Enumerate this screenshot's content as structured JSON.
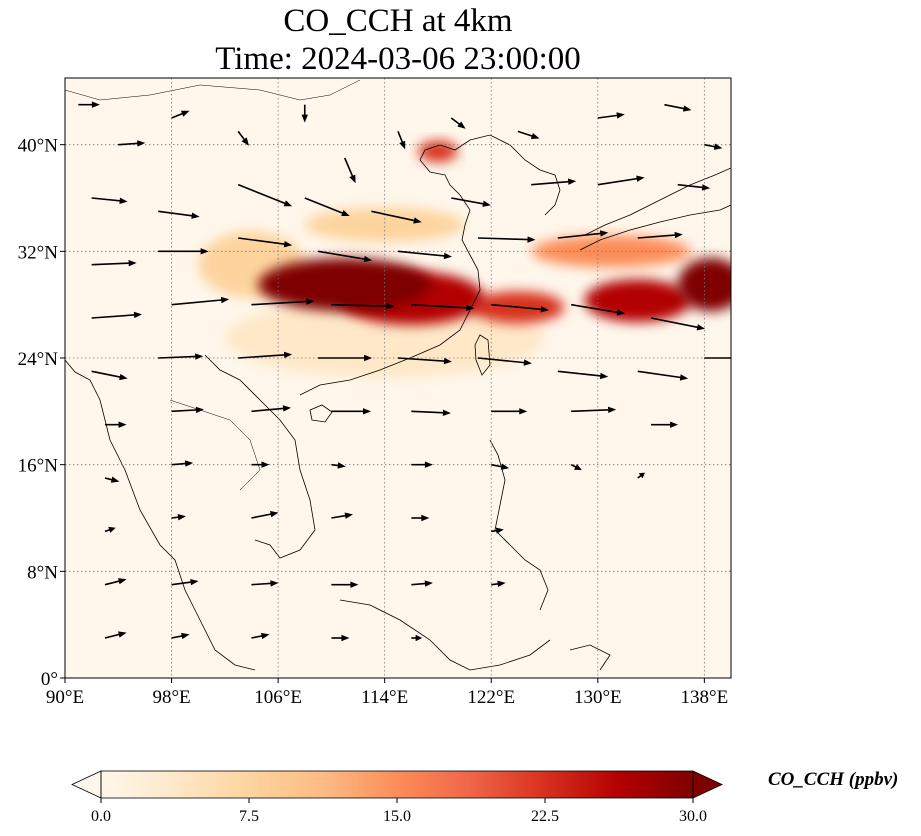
{
  "title": {
    "line1": "CO_CCH at 4km",
    "line2": "Time: 2024-03-06 23:00:00"
  },
  "map": {
    "extent": {
      "lon": [
        90,
        140
      ],
      "lat": [
        0,
        45
      ]
    },
    "lat_ticks": [
      {
        "value": 0,
        "label": "0°"
      },
      {
        "value": 8,
        "label": "8°N"
      },
      {
        "value": 16,
        "label": "16°N"
      },
      {
        "value": 24,
        "label": "24°N"
      },
      {
        "value": 32,
        "label": "32°N"
      },
      {
        "value": 40,
        "label": "40°N"
      }
    ],
    "lon_ticks": [
      {
        "value": 90,
        "label": "90°E"
      },
      {
        "value": 98,
        "label": "98°E"
      },
      {
        "value": 106,
        "label": "106°E"
      },
      {
        "value": 114,
        "label": "114°E"
      },
      {
        "value": 122,
        "label": "122°E"
      },
      {
        "value": 130,
        "label": "130°E"
      },
      {
        "value": 138,
        "label": "138°E"
      }
    ],
    "gridlines": true,
    "field_plumes": [
      {
        "name": "main-plume",
        "lon": 111,
        "lat": 29.5,
        "rx": 6.5,
        "ry": 2.0,
        "value": 30
      },
      {
        "name": "central-plume",
        "lon": 116,
        "lat": 28.5,
        "rx": 5.5,
        "ry": 2.0,
        "value": 28
      },
      {
        "name": "east-china-sea-plume",
        "lon": 124,
        "lat": 27.8,
        "rx": 3.5,
        "ry": 1.2,
        "value": 22
      },
      {
        "name": "pacific-plume",
        "lon": 133,
        "lat": 28.3,
        "rx": 4.0,
        "ry": 1.6,
        "value": 26
      },
      {
        "name": "far-east-plume",
        "lon": 138.5,
        "lat": 29.5,
        "rx": 2.5,
        "ry": 2.0,
        "value": 29
      },
      {
        "name": "japan-band",
        "lon": 131,
        "lat": 32.0,
        "rx": 6.0,
        "ry": 1.2,
        "value": 14
      },
      {
        "name": "north-band",
        "lon": 114,
        "lat": 34.0,
        "rx": 6.0,
        "ry": 1.3,
        "value": 9
      },
      {
        "name": "bohai-plume",
        "lon": 118,
        "lat": 39.5,
        "rx": 1.5,
        "ry": 0.8,
        "value": 24
      },
      {
        "name": "south-haze",
        "lon": 114,
        "lat": 25.5,
        "rx": 12.0,
        "ry": 3.0,
        "value": 5
      },
      {
        "name": "west-haze",
        "lon": 104,
        "lat": 31.0,
        "rx": 4.0,
        "ry": 2.5,
        "value": 8
      }
    ],
    "wind_vectors": [
      {
        "lon": 91,
        "lat": 43,
        "u": 1.2,
        "v": 0.0
      },
      {
        "lon": 94,
        "lat": 40,
        "u": 1.5,
        "v": 0.1
      },
      {
        "lon": 98,
        "lat": 42,
        "u": 1.0,
        "v": 0.4
      },
      {
        "lon": 103,
        "lat": 41,
        "u": 0.6,
        "v": -0.8
      },
      {
        "lon": 108,
        "lat": 43,
        "u": 0.0,
        "v": -1.0
      },
      {
        "lon": 111,
        "lat": 39,
        "u": 0.6,
        "v": -1.4
      },
      {
        "lon": 115,
        "lat": 41,
        "u": 0.4,
        "v": -1.0
      },
      {
        "lon": 119,
        "lat": 42,
        "u": 0.8,
        "v": -0.6
      },
      {
        "lon": 124,
        "lat": 41,
        "u": 1.2,
        "v": -0.4
      },
      {
        "lon": 130,
        "lat": 42,
        "u": 1.5,
        "v": 0.2
      },
      {
        "lon": 135,
        "lat": 43,
        "u": 1.5,
        "v": -0.3
      },
      {
        "lon": 138,
        "lat": 40,
        "u": 1.0,
        "v": -0.2
      },
      {
        "lon": 92,
        "lat": 36,
        "u": 2.0,
        "v": -0.2
      },
      {
        "lon": 97,
        "lat": 35,
        "u": 2.3,
        "v": -0.3
      },
      {
        "lon": 103,
        "lat": 37,
        "u": 3.0,
        "v": -1.2
      },
      {
        "lon": 108,
        "lat": 36,
        "u": 2.5,
        "v": -1.0
      },
      {
        "lon": 113,
        "lat": 35,
        "u": 2.8,
        "v": -0.6
      },
      {
        "lon": 119,
        "lat": 36,
        "u": 2.2,
        "v": -0.4
      },
      {
        "lon": 125,
        "lat": 37,
        "u": 2.5,
        "v": 0.2
      },
      {
        "lon": 130,
        "lat": 37,
        "u": 2.6,
        "v": 0.4
      },
      {
        "lon": 136,
        "lat": 37,
        "u": 1.8,
        "v": -0.2
      },
      {
        "lon": 92,
        "lat": 31,
        "u": 2.5,
        "v": 0.1
      },
      {
        "lon": 97,
        "lat": 32,
        "u": 2.8,
        "v": 0.0
      },
      {
        "lon": 103,
        "lat": 33,
        "u": 3.0,
        "v": -0.4
      },
      {
        "lon": 109,
        "lat": 32,
        "u": 3.0,
        "v": -0.5
      },
      {
        "lon": 115,
        "lat": 32,
        "u": 3.0,
        "v": -0.3
      },
      {
        "lon": 121,
        "lat": 33,
        "u": 3.2,
        "v": -0.1
      },
      {
        "lon": 127,
        "lat": 33,
        "u": 2.8,
        "v": 0.3
      },
      {
        "lon": 133,
        "lat": 33,
        "u": 2.5,
        "v": 0.2
      },
      {
        "lon": 92,
        "lat": 27,
        "u": 2.8,
        "v": 0.2
      },
      {
        "lon": 98,
        "lat": 28,
        "u": 3.2,
        "v": 0.3
      },
      {
        "lon": 104,
        "lat": 28,
        "u": 3.5,
        "v": 0.2
      },
      {
        "lon": 110,
        "lat": 28,
        "u": 3.5,
        "v": -0.1
      },
      {
        "lon": 116,
        "lat": 28,
        "u": 3.5,
        "v": -0.2
      },
      {
        "lon": 122,
        "lat": 28,
        "u": 3.2,
        "v": -0.3
      },
      {
        "lon": 128,
        "lat": 28,
        "u": 3.0,
        "v": -0.5
      },
      {
        "lon": 134,
        "lat": 27,
        "u": 3.0,
        "v": -0.6
      },
      {
        "lon": 92,
        "lat": 23,
        "u": 2.0,
        "v": -0.4
      },
      {
        "lon": 97,
        "lat": 24,
        "u": 2.5,
        "v": 0.1
      },
      {
        "lon": 103,
        "lat": 24,
        "u": 3.0,
        "v": 0.2
      },
      {
        "lon": 109,
        "lat": 24,
        "u": 3.0,
        "v": 0.0
      },
      {
        "lon": 115,
        "lat": 24,
        "u": 3.0,
        "v": -0.2
      },
      {
        "lon": 121,
        "lat": 24,
        "u": 3.0,
        "v": -0.3
      },
      {
        "lon": 127,
        "lat": 23,
        "u": 2.8,
        "v": -0.3
      },
      {
        "lon": 133,
        "lat": 23,
        "u": 2.8,
        "v": -0.4
      },
      {
        "lon": 138,
        "lat": 24,
        "u": 2.0,
        "v": 0.0
      },
      {
        "lon": 93,
        "lat": 19,
        "u": 1.2,
        "v": 0.0
      },
      {
        "lon": 98,
        "lat": 20,
        "u": 1.8,
        "v": 0.1
      },
      {
        "lon": 104,
        "lat": 20,
        "u": 2.2,
        "v": 0.2
      },
      {
        "lon": 110,
        "lat": 20,
        "u": 2.2,
        "v": 0.0
      },
      {
        "lon": 116,
        "lat": 20,
        "u": 2.2,
        "v": -0.1
      },
      {
        "lon": 122,
        "lat": 20,
        "u": 2.0,
        "v": 0.0
      },
      {
        "lon": 128,
        "lat": 20,
        "u": 2.5,
        "v": 0.1
      },
      {
        "lon": 134,
        "lat": 19,
        "u": 1.5,
        "v": 0.0
      },
      {
        "lon": 93,
        "lat": 15,
        "u": 0.8,
        "v": -0.2
      },
      {
        "lon": 98,
        "lat": 16,
        "u": 1.2,
        "v": 0.1
      },
      {
        "lon": 104,
        "lat": 16,
        "u": 1.0,
        "v": 0.0
      },
      {
        "lon": 110,
        "lat": 16,
        "u": 0.8,
        "v": -0.1
      },
      {
        "lon": 116,
        "lat": 16,
        "u": 1.2,
        "v": 0.0
      },
      {
        "lon": 122,
        "lat": 16,
        "u": 1.0,
        "v": -0.2
      },
      {
        "lon": 128,
        "lat": 16,
        "u": 0.6,
        "v": -0.3
      },
      {
        "lon": 133,
        "lat": 15,
        "u": 0.4,
        "v": 0.3
      },
      {
        "lon": 93,
        "lat": 11,
        "u": 0.6,
        "v": 0.2
      },
      {
        "lon": 98,
        "lat": 12,
        "u": 0.8,
        "v": 0.1
      },
      {
        "lon": 104,
        "lat": 12,
        "u": 1.5,
        "v": 0.3
      },
      {
        "lon": 110,
        "lat": 12,
        "u": 1.2,
        "v": 0.2
      },
      {
        "lon": 116,
        "lat": 12,
        "u": 1.0,
        "v": 0.0
      },
      {
        "lon": 122,
        "lat": 11,
        "u": 0.7,
        "v": 0.1
      },
      {
        "lon": 93,
        "lat": 7,
        "u": 1.2,
        "v": 0.3
      },
      {
        "lon": 98,
        "lat": 7,
        "u": 1.5,
        "v": 0.2
      },
      {
        "lon": 104,
        "lat": 7,
        "u": 1.5,
        "v": 0.1
      },
      {
        "lon": 110,
        "lat": 7,
        "u": 1.5,
        "v": 0.0
      },
      {
        "lon": 116,
        "lat": 7,
        "u": 1.2,
        "v": 0.1
      },
      {
        "lon": 122,
        "lat": 7,
        "u": 0.8,
        "v": 0.1
      },
      {
        "lon": 93,
        "lat": 3,
        "u": 1.2,
        "v": 0.3
      },
      {
        "lon": 98,
        "lat": 3,
        "u": 1.0,
        "v": 0.2
      },
      {
        "lon": 104,
        "lat": 3,
        "u": 1.0,
        "v": 0.2
      },
      {
        "lon": 110,
        "lat": 3,
        "u": 1.0,
        "v": 0.0
      },
      {
        "lon": 116,
        "lat": 3,
        "u": 0.6,
        "v": 0.0
      }
    ]
  },
  "colorbar": {
    "label": "CO_CCH (ppbv)",
    "min": 0,
    "max": 30,
    "ticks": [
      {
        "value": 0,
        "label": "0.0"
      },
      {
        "value": 7.5,
        "label": "7.5"
      },
      {
        "value": 15,
        "label": "15.0"
      },
      {
        "value": 22.5,
        "label": "22.5"
      },
      {
        "value": 30,
        "label": "30.0"
      }
    ],
    "colors": [
      "#fff7ec",
      "#fee8c8",
      "#fdd49e",
      "#fdbb84",
      "#fc8d59",
      "#ef6548",
      "#d7301f",
      "#b30000",
      "#7f0000"
    ]
  }
}
